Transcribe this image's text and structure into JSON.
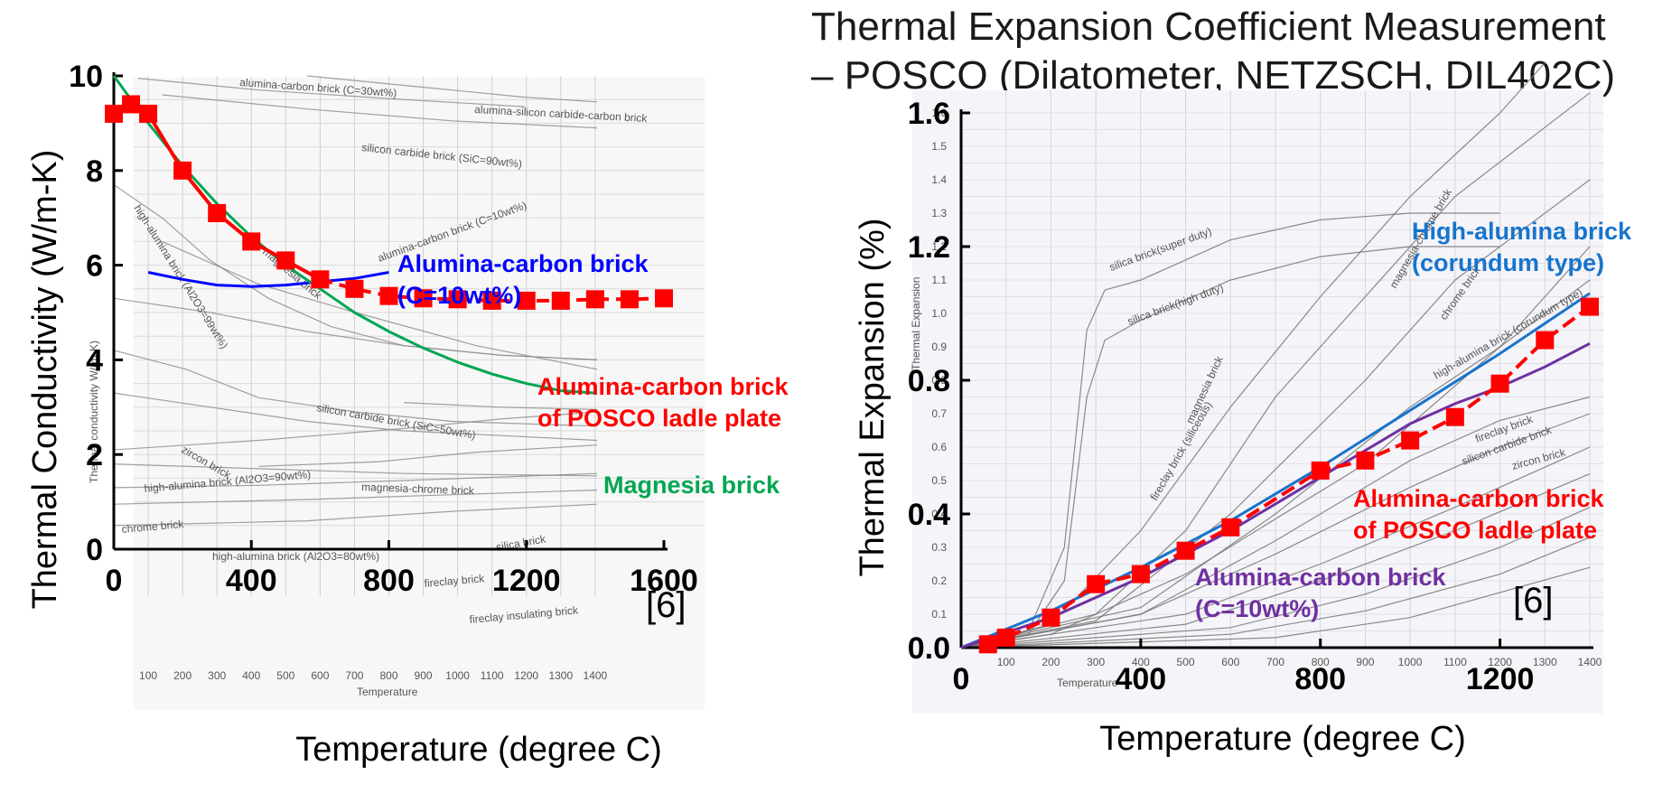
{
  "chart_data": [
    {
      "type": "line",
      "xlabel": "Temperature (degree C)",
      "ylabel": "Thermal Conductivity (W/m-K)",
      "xlim": [
        0,
        1600
      ],
      "ylim": [
        0,
        10
      ],
      "xticks": [
        "0",
        "400",
        "800",
        "1200",
        "1600"
      ],
      "yticks": [
        "0",
        "2",
        "4",
        "6",
        "8",
        "10"
      ],
      "reference": "[6]",
      "series": [
        {
          "name": "Alumina-carbon brick of POSCO ladle plate",
          "label_lines": [
            "Alumina-carbon brick",
            "of POSCO ladle plate"
          ],
          "color": "#ff0000",
          "x": [
            0,
            50,
            100,
            200,
            300,
            400,
            500,
            600,
            700,
            800,
            900,
            1000,
            1100,
            1200,
            1300,
            1400,
            1500,
            1600
          ],
          "y": [
            9.2,
            9.4,
            9.2,
            8.0,
            7.1,
            6.5,
            6.1,
            5.7,
            5.5,
            5.35,
            5.3,
            5.28,
            5.25,
            5.25,
            5.25,
            5.28,
            5.28,
            5.3
          ]
        },
        {
          "name": "Alumina-carbon brick (C=10wt%)",
          "label_lines": [
            "Alumina-carbon brick",
            "(C=10wt%)"
          ],
          "color": "#0000ff",
          "x": [
            100,
            200,
            300,
            400,
            500,
            600,
            700,
            800
          ],
          "y": [
            5.85,
            5.7,
            5.58,
            5.55,
            5.58,
            5.65,
            5.72,
            5.85
          ]
        },
        {
          "name": "Magnesia brick",
          "label_lines": [
            "Magnesia brick"
          ],
          "color": "#00a651",
          "x": [
            0,
            100,
            200,
            300,
            400,
            500,
            600,
            700,
            800,
            900,
            1000,
            1100,
            1200,
            1300,
            1400
          ],
          "y": [
            10.0,
            9.0,
            8.1,
            7.3,
            6.6,
            6.0,
            5.5,
            5.0,
            4.6,
            4.25,
            3.95,
            3.7,
            3.5,
            3.35,
            3.3
          ]
        }
      ],
      "background_labels": [
        "alumina-carbon brick (C=30wt%)",
        "alumina-silicon carbide-carbon brick",
        "silicon carbide brick (SiC=90wt%)",
        "high-alumina brick (Al2O3=99wt%)",
        "magnesia brick",
        "alumina-carbon brick (C=10wt%)",
        "silicon carbide brick (SiC=50wt%)",
        "zircon brick",
        "magnesia-chrome brick",
        "high-alumina brick (Al2O3=90wt%)",
        "chrome brick",
        "high-alumina brick (Al2O3=80wt%)",
        "silica brick",
        "fireclay brick",
        "fireclay insulating brick",
        "Thermal conductivity W/(m·K)",
        "Temperature"
      ],
      "background_ticks": [
        "100",
        "200",
        "300",
        "400",
        "500",
        "600",
        "700",
        "800",
        "900",
        "1000",
        "1100",
        "1200",
        "1300",
        "1400"
      ]
    },
    {
      "type": "line",
      "title_lines": [
        "Thermal Expansion Coefficient Measurement",
        "– POSCO (Dilatometer, NETZSCH, DIL402C)"
      ],
      "xlabel": "Temperature (degree C)",
      "ylabel": "Thermal Expansion (%)",
      "xlim": [
        0,
        1400
      ],
      "ylim": [
        0,
        1.6
      ],
      "xticks": [
        "0",
        "400",
        "800",
        "1200"
      ],
      "yticks": [
        "0.0",
        "0.4",
        "0.8",
        "1.2",
        "1.6"
      ],
      "reference": "[6]",
      "series": [
        {
          "name": "Alumina-carbon brick of POSCO ladle plate",
          "label_lines": [
            "Alumina-carbon brick",
            "of POSCO ladle plate"
          ],
          "color": "#ff0000",
          "x": [
            60,
            100,
            200,
            300,
            400,
            500,
            600,
            800,
            900,
            1000,
            1100,
            1200,
            1300,
            1400
          ],
          "y": [
            0.01,
            0.03,
            0.09,
            0.19,
            0.22,
            0.29,
            0.36,
            0.53,
            0.56,
            0.62,
            0.69,
            0.79,
            0.92,
            1.02
          ]
        },
        {
          "name": "High-alumina brick (corundum type)",
          "label_lines": [
            "High-alumina brick",
            "(corundum type)"
          ],
          "color": "#1874cd",
          "x": [
            0,
            200,
            400,
            600,
            800,
            1000,
            1200,
            1400
          ],
          "y": [
            0.0,
            0.11,
            0.24,
            0.38,
            0.54,
            0.71,
            0.88,
            1.06
          ]
        },
        {
          "name": "Alumina-carbon brick (C=10wt%)",
          "label_lines": [
            "Alumina-carbon brick",
            "(C=10wt%)"
          ],
          "color": "#7030a0",
          "x": [
            0,
            200,
            400,
            600,
            800,
            1000,
            1100,
            1200,
            1300,
            1400
          ],
          "y": [
            0.0,
            0.09,
            0.21,
            0.35,
            0.51,
            0.67,
            0.73,
            0.78,
            0.84,
            0.91
          ]
        }
      ],
      "background_labels": [
        "silica brick(super duty)",
        "silica brick(high duty)",
        "magnesia brick",
        "fireclay brick (siliceous)",
        "magnesia-chrome brick",
        "chrome brick",
        "high-alumina brick (corundum type)",
        "fireclay brick",
        "silicon carbide brick",
        "zircon brick",
        "Thermal Expansion",
        "Temperature"
      ],
      "background_ticks": [
        "100",
        "200",
        "300",
        "400",
        "500",
        "600",
        "700",
        "800",
        "900",
        "1000",
        "1100",
        "1200",
        "1300",
        "1400"
      ],
      "background_yticks": [
        "0.1",
        "0.2",
        "0.3",
        "0.4",
        "0.5",
        "0.6",
        "0.7",
        "0.8",
        "0.9",
        "1.0",
        "1.1",
        "1.2",
        "1.3",
        "1.4",
        "1.5",
        "1.6"
      ]
    }
  ]
}
